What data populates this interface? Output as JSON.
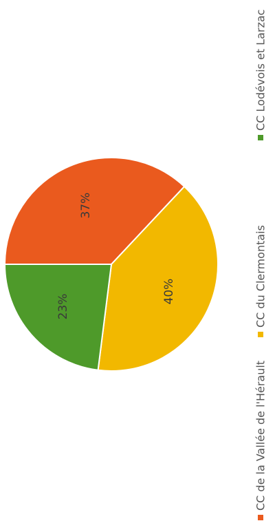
{
  "chart_data": {
    "type": "pie",
    "title": "",
    "slices": [
      {
        "label": "CC de la Vallée de l'Hérault",
        "value": 37,
        "display": "37%",
        "color": "#ea5a1e"
      },
      {
        "label": "CC du Clermontais",
        "value": 40,
        "display": "40%",
        "color": "#f2b800"
      },
      {
        "label": "CC Lodévois et Larzac",
        "value": 23,
        "display": "23%",
        "color": "#4e9a2a"
      }
    ],
    "legend_position": "bottom",
    "rotation": "page rotated 90° counter-clockwise"
  }
}
